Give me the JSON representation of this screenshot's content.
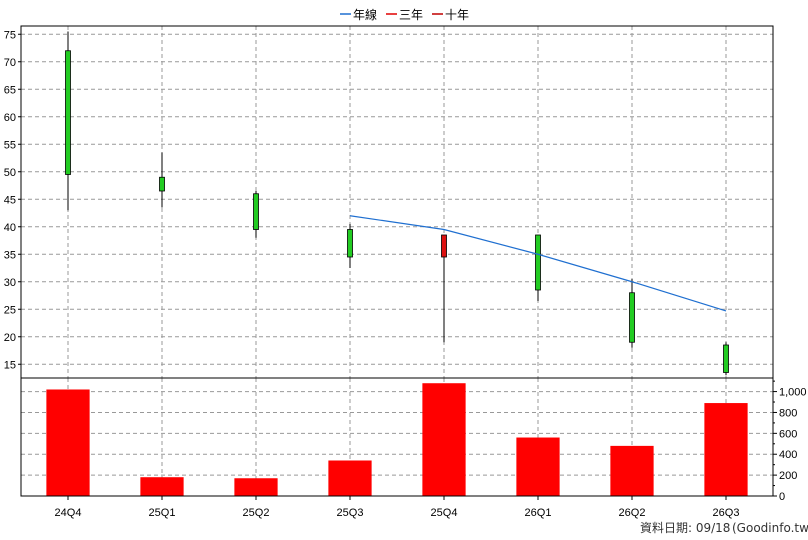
{
  "chart_data": {
    "type": "candlestick+bar",
    "categories": [
      "24Q4",
      "25Q1",
      "25Q2",
      "25Q3",
      "25Q4",
      "26Q1",
      "26Q2",
      "26Q3"
    ],
    "price": {
      "yticks": [
        15,
        20,
        25,
        30,
        35,
        40,
        45,
        50,
        55,
        60,
        65,
        70,
        75
      ],
      "ylim": [
        12.5,
        76.5
      ],
      "candles": [
        {
          "open": 49.5,
          "close": 72,
          "high": 75.5,
          "low": 43,
          "up": true
        },
        {
          "open": 46.5,
          "close": 49,
          "high": 53.5,
          "low": 43.5,
          "up": true
        },
        {
          "open": 39.5,
          "close": 46,
          "high": 46.5,
          "low": 38,
          "up": true
        },
        {
          "open": 34.5,
          "close": 39.5,
          "high": 40.5,
          "low": 32.5,
          "up": true
        },
        {
          "open": 38.5,
          "close": 34.5,
          "high": 38.5,
          "low": 19,
          "up": false
        },
        {
          "open": 28.5,
          "close": 38.5,
          "high": 38.5,
          "low": 26.5,
          "up": true
        },
        {
          "open": 19,
          "close": 28,
          "high": 30.5,
          "low": 18,
          "up": true
        },
        {
          "open": 13.5,
          "close": 18.5,
          "high": 19,
          "low": 13,
          "up": true
        }
      ],
      "ma_year": [
        null,
        null,
        null,
        42,
        39.5,
        35,
        30,
        24.7
      ]
    },
    "volume": {
      "values": [
        1020,
        180,
        170,
        340,
        1080,
        560,
        480,
        890
      ],
      "yticks": [
        0,
        200,
        400,
        600,
        800,
        1000
      ],
      "ytick_labels": [
        "0",
        "200",
        "400",
        "600",
        "800",
        "1,000"
      ],
      "ylim": [
        0,
        1130
      ]
    },
    "legend": [
      {
        "label": "年線",
        "color": "#1f6fd0"
      },
      {
        "label": "三年",
        "color": "#e00000"
      },
      {
        "label": "十年",
        "color": "#c00000"
      }
    ],
    "colors": {
      "up_body": "#22cc22",
      "down_body": "#dd1111",
      "volume_bar": "#ff0000",
      "ma_line": "#1f6fd0",
      "grid": "#999999"
    }
  },
  "footer": {
    "date_label": "資料日期: 09/18",
    "source": "(Goodinfo.tw)"
  }
}
